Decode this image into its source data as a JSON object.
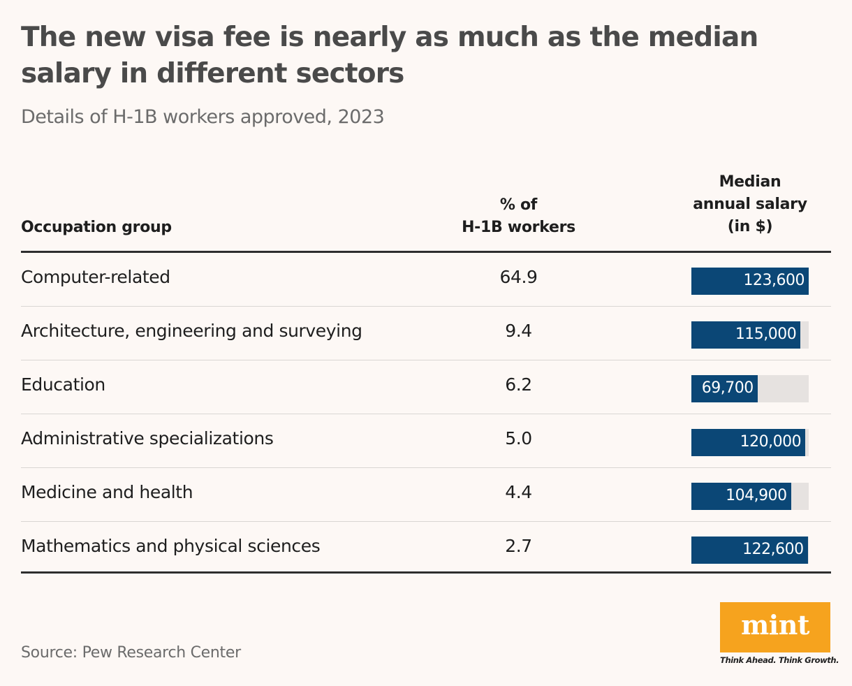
{
  "header": {
    "title": "The new visa fee is nearly as much as the median salary in different sectors",
    "subtitle": "Details of H-1B workers approved, 2023"
  },
  "table": {
    "columns": {
      "occupation": "Occupation group",
      "pct_line1": "% of",
      "pct_line2": "H-1B workers",
      "sal_line1": "Median",
      "sal_line2": "annual salary",
      "sal_line3": "(in $)"
    },
    "rows": [
      {
        "name": "Computer-related",
        "pct": "64.9",
        "salary": 123600,
        "salary_label": "123,600"
      },
      {
        "name": "Architecture, engineering and surveying",
        "pct": "9.4",
        "salary": 115000,
        "salary_label": "115,000"
      },
      {
        "name": "Education",
        "pct": "6.2",
        "salary": 69700,
        "salary_label": "69,700"
      },
      {
        "name": "Administrative specializations",
        "pct": "5.0",
        "salary": 120000,
        "salary_label": "120,000"
      },
      {
        "name": "Medicine and health",
        "pct": "4.4",
        "salary": 104900,
        "salary_label": "104,900"
      },
      {
        "name": "Mathematics and physical sciences",
        "pct": "2.7",
        "salary": 122600,
        "salary_label": "122,600"
      }
    ]
  },
  "chart_data": {
    "type": "table",
    "title": "The new visa fee is nearly as much as the median salary in different sectors",
    "subtitle": "Details of H-1B workers approved, 2023",
    "columns": [
      "Occupation group",
      "% of H-1B workers",
      "Median annual salary (in $)"
    ],
    "categories": [
      "Computer-related",
      "Architecture, engineering and surveying",
      "Education",
      "Administrative specializations",
      "Medicine and health",
      "Mathematics and physical sciences"
    ],
    "series": [
      {
        "name": "% of H-1B workers",
        "values": [
          64.9,
          9.4,
          6.2,
          5.0,
          4.4,
          2.7
        ]
      },
      {
        "name": "Median annual salary (in $)",
        "values": [
          123600,
          115000,
          69700,
          120000,
          104900,
          122600
        ]
      }
    ],
    "bar_scale_max": 123600
  },
  "colors": {
    "bar": "#0b4776",
    "bar_track": "#e6e2e0",
    "background": "#fdf8f5",
    "logo": "#f6a31e"
  },
  "footer": {
    "source": "Source: Pew Research Center",
    "logo_word": "mint",
    "tagline": "Think Ahead. Think Growth."
  }
}
